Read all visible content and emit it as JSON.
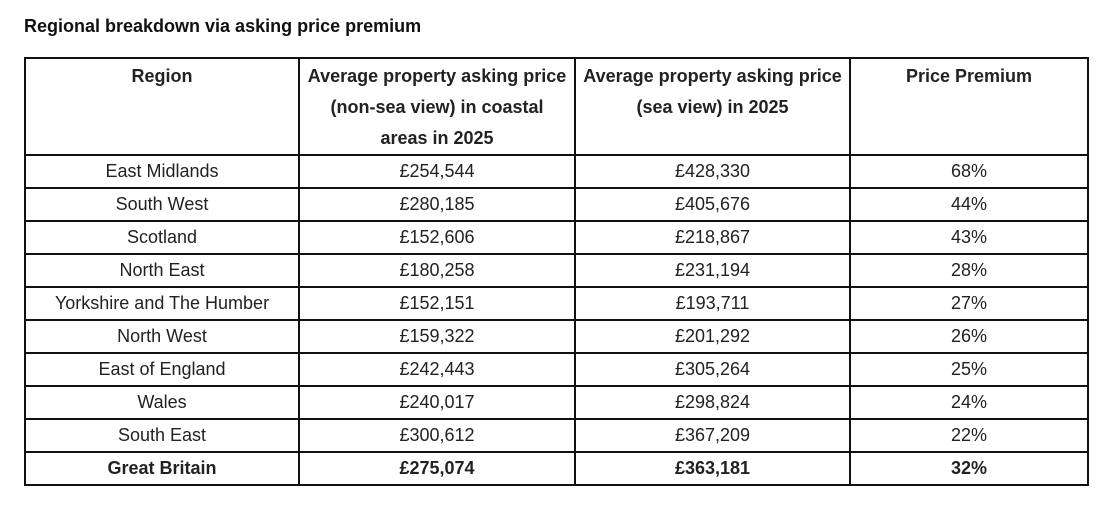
{
  "title": "Regional breakdown via asking price premium",
  "table": {
    "headers": [
      "Region",
      "Average property asking price (non-sea view) in coastal areas in 2025",
      "Average property asking price (sea view) in 2025",
      "Price Premium"
    ],
    "rows": [
      [
        "East Midlands",
        "£254,544",
        "£428,330",
        "68%"
      ],
      [
        "South West",
        "£280,185",
        "£405,676",
        "44%"
      ],
      [
        "Scotland",
        "£152,606",
        "£218,867",
        "43%"
      ],
      [
        "North East",
        "£180,258",
        "£231,194",
        "28%"
      ],
      [
        "Yorkshire and The Humber",
        "£152,151",
        "£193,711",
        "27%"
      ],
      [
        "North West",
        "£159,322",
        "£201,292",
        "26%"
      ],
      [
        "East of England",
        "£242,443",
        "£305,264",
        "25%"
      ],
      [
        "Wales",
        "£240,017",
        "£298,824",
        "24%"
      ],
      [
        "South East",
        "£300,612",
        "£367,209",
        "22%"
      ]
    ],
    "total": [
      "Great Britain",
      "£275,074",
      "£363,181",
      "32%"
    ]
  }
}
